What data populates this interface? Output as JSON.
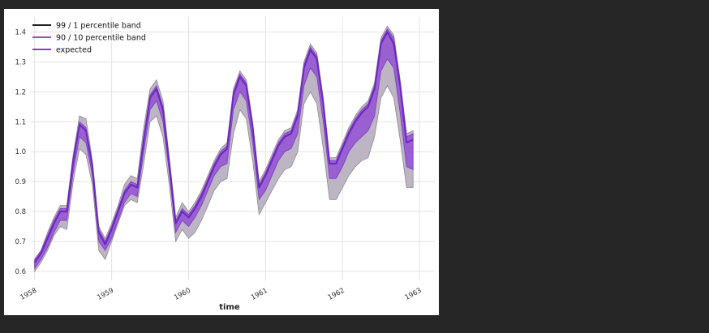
{
  "chart_data": {
    "type": "area",
    "xlabel": "time",
    "ylabel": "",
    "xlim": [
      1957.95,
      1963.2
    ],
    "ylim": [
      0.57,
      1.45
    ],
    "grid": true,
    "legend_position": "top-left",
    "x_ticks": [
      "1958",
      "1959",
      "1960",
      "1961",
      "1962",
      "1963"
    ],
    "y_ticks": [
      "0.6",
      "0.7",
      "0.8",
      "0.9",
      "1.0",
      "1.1",
      "1.2",
      "1.3",
      "1.4"
    ],
    "legend": [
      {
        "label": "99 / 1 percentile band",
        "color": "#000000"
      },
      {
        "label": "90 / 10 percentile band",
        "color": "#7b35c4"
      },
      {
        "label": "expected",
        "color": "#6a28c0"
      }
    ],
    "colors": {
      "band_99_1_fill": "#bdb5c4",
      "band_99_1_stroke": "#8e8595",
      "band_90_10_fill": "#9a5fd0",
      "expected_line": "#6a28c0"
    },
    "x": [
      1958.0,
      1958.083,
      1958.167,
      1958.25,
      1958.333,
      1958.417,
      1958.5,
      1958.583,
      1958.667,
      1958.75,
      1958.833,
      1958.917,
      1959.0,
      1959.083,
      1959.167,
      1959.25,
      1959.333,
      1959.417,
      1959.5,
      1959.583,
      1959.667,
      1959.75,
      1959.833,
      1959.917,
      1960.0,
      1960.083,
      1960.167,
      1960.25,
      1960.333,
      1960.417,
      1960.5,
      1960.583,
      1960.667,
      1960.75,
      1960.833,
      1960.917,
      1961.0,
      1961.083,
      1961.167,
      1961.25,
      1961.333,
      1961.417,
      1961.5,
      1961.583,
      1961.667,
      1961.75,
      1961.833,
      1961.917,
      1962.0,
      1962.083,
      1962.167,
      1962.25,
      1962.333,
      1962.417,
      1962.5,
      1962.583,
      1962.667,
      1962.75,
      1962.833,
      1962.917
    ],
    "expected": [
      0.63,
      0.66,
      0.71,
      0.76,
      0.8,
      0.8,
      0.97,
      1.09,
      1.07,
      0.95,
      0.73,
      0.69,
      0.74,
      0.8,
      0.86,
      0.89,
      0.88,
      1.04,
      1.18,
      1.21,
      1.14,
      0.96,
      0.76,
      0.8,
      0.78,
      0.81,
      0.85,
      0.9,
      0.95,
      0.99,
      1.01,
      1.19,
      1.25,
      1.22,
      1.08,
      0.88,
      0.92,
      0.97,
      1.02,
      1.05,
      1.06,
      1.12,
      1.28,
      1.34,
      1.31,
      1.16,
      0.96,
      0.96,
      1.01,
      1.06,
      1.1,
      1.13,
      1.15,
      1.21,
      1.36,
      1.4,
      1.36,
      1.22,
      1.03,
      1.04
    ],
    "upper_90": [
      0.64,
      0.67,
      0.72,
      0.77,
      0.81,
      0.81,
      0.98,
      1.1,
      1.08,
      0.96,
      0.74,
      0.7,
      0.75,
      0.81,
      0.87,
      0.9,
      0.89,
      1.05,
      1.19,
      1.22,
      1.15,
      0.97,
      0.77,
      0.81,
      0.79,
      0.82,
      0.86,
      0.91,
      0.96,
      1.0,
      1.02,
      1.2,
      1.26,
      1.23,
      1.09,
      0.89,
      0.93,
      0.98,
      1.03,
      1.06,
      1.07,
      1.13,
      1.29,
      1.35,
      1.32,
      1.17,
      0.97,
      0.97,
      1.02,
      1.07,
      1.11,
      1.14,
      1.16,
      1.22,
      1.37,
      1.41,
      1.38,
      1.23,
      1.05,
      1.06
    ],
    "lower_90": [
      0.61,
      0.64,
      0.68,
      0.73,
      0.77,
      0.77,
      0.93,
      1.05,
      1.03,
      0.92,
      0.7,
      0.67,
      0.71,
      0.77,
      0.83,
      0.86,
      0.85,
      1.0,
      1.14,
      1.17,
      1.1,
      0.93,
      0.73,
      0.77,
      0.75,
      0.78,
      0.82,
      0.87,
      0.92,
      0.95,
      0.96,
      1.14,
      1.2,
      1.17,
      1.03,
      0.84,
      0.87,
      0.92,
      0.97,
      1.0,
      1.01,
      1.06,
      1.22,
      1.28,
      1.25,
      1.1,
      0.91,
      0.91,
      0.95,
      1.0,
      1.03,
      1.05,
      1.07,
      1.12,
      1.27,
      1.31,
      1.28,
      1.13,
      0.95,
      0.94
    ],
    "upper_99": [
      0.64,
      0.67,
      0.73,
      0.78,
      0.82,
      0.82,
      0.99,
      1.12,
      1.11,
      0.97,
      0.75,
      0.71,
      0.76,
      0.82,
      0.89,
      0.92,
      0.91,
      1.08,
      1.21,
      1.24,
      1.17,
      0.98,
      0.78,
      0.83,
      0.8,
      0.83,
      0.87,
      0.92,
      0.97,
      1.01,
      1.03,
      1.21,
      1.27,
      1.24,
      1.1,
      0.9,
      0.94,
      0.99,
      1.04,
      1.07,
      1.08,
      1.14,
      1.3,
      1.36,
      1.33,
      1.18,
      0.98,
      0.98,
      1.03,
      1.08,
      1.12,
      1.15,
      1.17,
      1.23,
      1.38,
      1.42,
      1.39,
      1.24,
      1.06,
      1.07
    ],
    "lower_99": [
      0.6,
      0.63,
      0.67,
      0.72,
      0.75,
      0.74,
      0.9,
      1.01,
      0.99,
      0.89,
      0.67,
      0.64,
      0.7,
      0.76,
      0.82,
      0.84,
      0.83,
      0.96,
      1.1,
      1.12,
      1.05,
      0.89,
      0.7,
      0.74,
      0.71,
      0.73,
      0.77,
      0.82,
      0.87,
      0.9,
      0.91,
      1.06,
      1.14,
      1.11,
      0.97,
      0.79,
      0.83,
      0.87,
      0.91,
      0.94,
      0.95,
      1.0,
      1.16,
      1.2,
      1.16,
      1.01,
      0.84,
      0.84,
      0.88,
      0.92,
      0.95,
      0.97,
      0.98,
      1.05,
      1.18,
      1.22,
      1.18,
      1.04,
      0.88,
      0.88
    ]
  }
}
